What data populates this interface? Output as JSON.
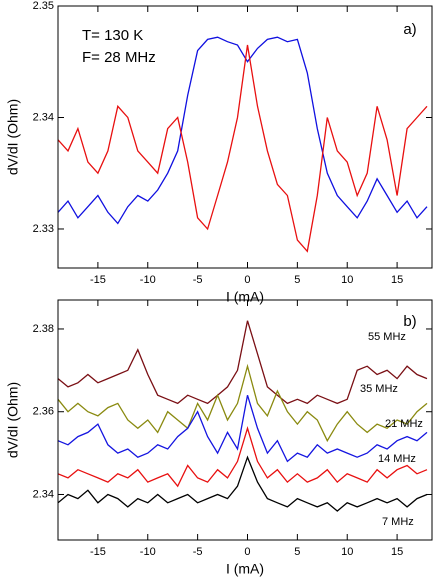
{
  "chart_data": [
    {
      "type": "line",
      "x": [
        -19,
        -18,
        -17,
        -16,
        -15,
        -14,
        -13,
        -12,
        -11,
        -10,
        -9,
        -8,
        -7,
        -6,
        -5,
        -4,
        -3,
        -2,
        -1,
        0,
        1,
        2,
        3,
        4,
        5,
        6,
        7,
        8,
        9,
        10,
        11,
        12,
        13,
        14,
        15,
        16,
        17,
        18
      ],
      "series": [
        {
          "color": "#1010e0",
          "values": [
            2.3315,
            2.3325,
            2.331,
            2.332,
            2.333,
            2.3315,
            2.3305,
            2.332,
            2.333,
            2.3325,
            2.3335,
            2.335,
            2.337,
            2.342,
            2.346,
            2.347,
            2.3472,
            2.3468,
            2.3465,
            2.345,
            2.3462,
            2.347,
            2.3472,
            2.3468,
            2.347,
            2.344,
            2.339,
            2.335,
            2.333,
            2.332,
            2.331,
            2.3325,
            2.3345,
            2.333,
            2.3315,
            2.3325,
            2.331,
            2.332
          ]
        },
        {
          "color": "#e81010",
          "values": [
            2.338,
            2.337,
            2.339,
            2.336,
            2.335,
            2.337,
            2.341,
            2.34,
            2.337,
            2.336,
            2.335,
            2.339,
            2.34,
            2.336,
            2.331,
            2.33,
            2.333,
            2.336,
            2.34,
            2.3465,
            2.341,
            2.337,
            2.334,
            2.333,
            2.329,
            2.328,
            2.333,
            2.34,
            2.337,
            2.336,
            2.333,
            2.335,
            2.341,
            2.338,
            2.333,
            2.339,
            2.34,
            2.341
          ]
        }
      ],
      "xlim": [
        -19,
        18.5
      ],
      "ylim": [
        2.3265,
        2.35
      ],
      "xticks": [
        -15,
        -10,
        -5,
        0,
        5,
        10,
        15
      ],
      "yticks": [
        2.33,
        2.34,
        2.35
      ],
      "xlabel": "I (mA)",
      "ylabel": "dV/dI (Ohm)",
      "annotations": [
        "T= 130 K",
        "F= 28 MHz",
        "a)"
      ]
    },
    {
      "type": "line",
      "x": [
        -19,
        -18,
        -17,
        -16,
        -15,
        -14,
        -13,
        -12,
        -11,
        -10,
        -9,
        -8,
        -7,
        -6,
        -5,
        -4,
        -3,
        -2,
        -1,
        0,
        1,
        2,
        3,
        4,
        5,
        6,
        7,
        8,
        9,
        10,
        11,
        12,
        13,
        14,
        15,
        16,
        17,
        18
      ],
      "series": [
        {
          "name": "55 MHz",
          "color": "#7a0f14",
          "values": [
            2.368,
            2.366,
            2.367,
            2.369,
            2.367,
            2.368,
            2.369,
            2.37,
            2.375,
            2.369,
            2.364,
            2.363,
            2.362,
            2.364,
            2.363,
            2.362,
            2.364,
            2.366,
            2.37,
            2.382,
            2.374,
            2.366,
            2.364,
            2.362,
            2.363,
            2.362,
            2.364,
            2.363,
            2.362,
            2.363,
            2.37,
            2.371,
            2.369,
            2.37,
            2.368,
            2.371,
            2.369,
            2.368
          ]
        },
        {
          "name": "35 MHz",
          "color": "#8a8a10",
          "values": [
            2.363,
            2.36,
            2.362,
            2.36,
            2.359,
            2.361,
            2.362,
            2.358,
            2.356,
            2.358,
            2.355,
            2.36,
            2.358,
            2.356,
            2.362,
            2.358,
            2.364,
            2.358,
            2.362,
            2.371,
            2.362,
            2.359,
            2.365,
            2.36,
            2.357,
            2.36,
            2.358,
            2.353,
            2.357,
            2.36,
            2.357,
            2.355,
            2.357,
            2.356,
            2.358,
            2.357,
            2.36,
            2.362
          ]
        },
        {
          "name": "21 MHz",
          "color": "#1515e0",
          "values": [
            2.353,
            2.352,
            2.354,
            2.355,
            2.357,
            2.352,
            2.35,
            2.351,
            2.349,
            2.35,
            2.352,
            2.351,
            2.354,
            2.356,
            2.36,
            2.354,
            2.35,
            2.355,
            2.351,
            2.364,
            2.356,
            2.35,
            2.353,
            2.348,
            2.35,
            2.349,
            2.352,
            2.35,
            2.351,
            2.35,
            2.349,
            2.35,
            2.352,
            2.351,
            2.353,
            2.354,
            2.353,
            2.355
          ]
        },
        {
          "name": "14 MHz",
          "color": "#e81010",
          "values": [
            2.345,
            2.344,
            2.346,
            2.345,
            2.344,
            2.343,
            2.345,
            2.344,
            2.346,
            2.343,
            2.344,
            2.345,
            2.342,
            2.347,
            2.344,
            2.343,
            2.346,
            2.344,
            2.348,
            2.356,
            2.348,
            2.344,
            2.346,
            2.343,
            2.345,
            2.343,
            2.344,
            2.346,
            2.343,
            2.345,
            2.344,
            2.343,
            2.346,
            2.344,
            2.346,
            2.347,
            2.345,
            2.346
          ]
        },
        {
          "name": "7 MHz",
          "color": "#000000",
          "values": [
            2.338,
            2.34,
            2.339,
            2.341,
            2.338,
            2.34,
            2.339,
            2.337,
            2.339,
            2.338,
            2.34,
            2.338,
            2.339,
            2.34,
            2.338,
            2.339,
            2.34,
            2.339,
            2.342,
            2.349,
            2.343,
            2.339,
            2.338,
            2.337,
            2.339,
            2.338,
            2.337,
            2.338,
            2.336,
            2.338,
            2.337,
            2.338,
            2.339,
            2.338,
            2.339,
            2.337,
            2.339,
            2.34
          ]
        }
      ],
      "xlim": [
        -19,
        18.5
      ],
      "ylim": [
        2.329,
        2.387
      ],
      "xticks": [
        -15,
        -10,
        -5,
        0,
        5,
        10,
        15
      ],
      "yticks": [
        2.34,
        2.36,
        2.38
      ],
      "xlabel": "I (mA)",
      "ylabel": "dV/dI (Ohm)",
      "annotations": [
        "b)"
      ]
    }
  ]
}
